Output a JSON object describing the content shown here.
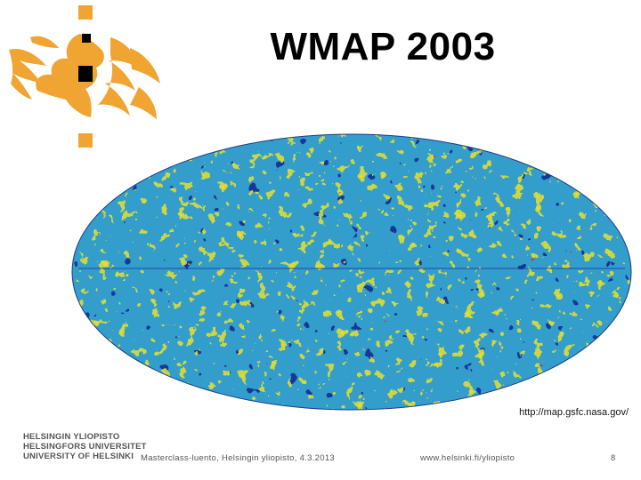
{
  "slide": {
    "title": "WMAP 2003",
    "source_url": "http://map.gsfc.nasa.gov/",
    "map_image": "wmap-cmb-sky-map"
  },
  "logo": {
    "name": "flame-logo",
    "color": "#f0a432",
    "accent": "#000000"
  },
  "footer": {
    "university_lines": [
      "HELSINGIN YLIOPISTO",
      "HELSINGFORS UNIVERSITET",
      "UNIVERSITY OF HELSINKI"
    ],
    "event": "Masterclass-luento, Helsingin yliopisto, 4.3.2013",
    "website": "www.helsinki.fi/yliopisto",
    "page_number": "8"
  }
}
